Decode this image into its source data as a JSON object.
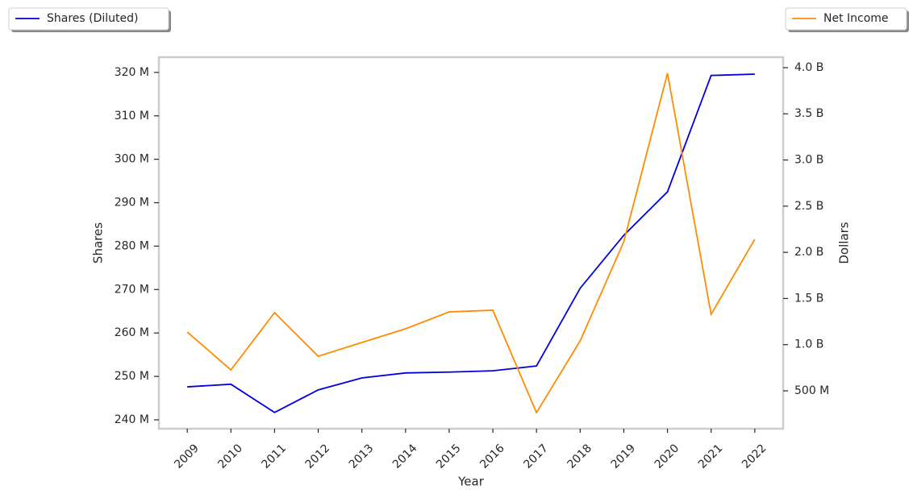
{
  "chart_data": {
    "type": "line",
    "x": [
      2009,
      2010,
      2011,
      2012,
      2013,
      2014,
      2015,
      2016,
      2017,
      2018,
      2019,
      2020,
      2021,
      2022
    ],
    "xlabel": "Year",
    "ylabel": "Shares",
    "y2label": "Dollars",
    "xlim": [
      2008.35,
      2022.65
    ],
    "xticks": [
      2009,
      2010,
      2011,
      2012,
      2013,
      2014,
      2015,
      2016,
      2017,
      2018,
      2019,
      2020,
      2021,
      2022
    ],
    "ylim": [
      237960000,
      323500000
    ],
    "yticks": [
      {
        "value": 240000000,
        "label": "240 M"
      },
      {
        "value": 250000000,
        "label": "250 M"
      },
      {
        "value": 260000000,
        "label": "260 M"
      },
      {
        "value": 270000000,
        "label": "270 M"
      },
      {
        "value": 280000000,
        "label": "280 M"
      },
      {
        "value": 290000000,
        "label": "290 M"
      },
      {
        "value": 300000000,
        "label": "300 M"
      },
      {
        "value": 310000000,
        "label": "310 M"
      },
      {
        "value": 320000000,
        "label": "320 M"
      }
    ],
    "y2lim": [
      90000000,
      4113000000
    ],
    "y2ticks": [
      {
        "value": 500000000,
        "label": "500 M"
      },
      {
        "value": 1000000000,
        "label": "1.0 B"
      },
      {
        "value": 1500000000,
        "label": "1.5 B"
      },
      {
        "value": 2000000000,
        "label": "2.0 B"
      },
      {
        "value": 2500000000,
        "label": "2.5 B"
      },
      {
        "value": 3000000000,
        "label": "3.0 B"
      },
      {
        "value": 3500000000,
        "label": "3.5 B"
      },
      {
        "value": 4000000000,
        "label": "4.0 B"
      }
    ],
    "grid": false,
    "series": [
      {
        "name": "Shares (Diluted)",
        "color": "#0000dd",
        "legend": "upper left",
        "values": [
          247600000,
          248200000,
          241700000,
          246900000,
          249650000,
          250800000,
          251000000,
          251300000,
          252400000,
          270300000,
          282500000,
          292500000,
          319300000,
          319600000
        ]
      },
      {
        "name": "Net Income",
        "color": "#ff8c00",
        "axis": "y2",
        "legend": "upper right",
        "values": [
          1137000000,
          727000000,
          1347000000,
          875000000,
          1024000000,
          1172000000,
          1355000000,
          1373000000,
          264000000,
          1041000000,
          2115000000,
          3939000000,
          1329000000,
          2141000000
        ]
      }
    ]
  }
}
